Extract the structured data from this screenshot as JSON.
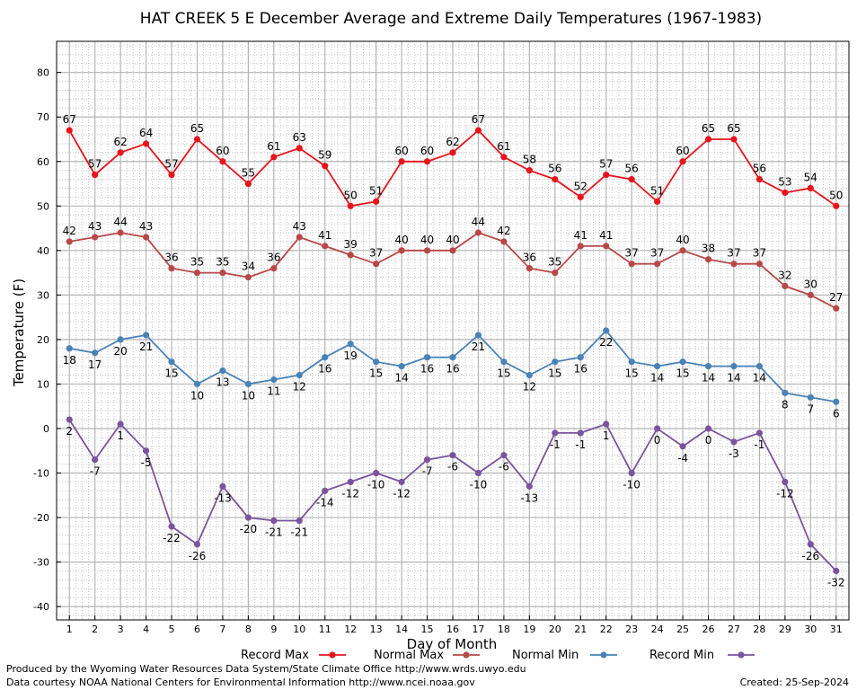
{
  "chart_data": {
    "type": "line",
    "title": "HAT CREEK 5 E December Average and Extreme Daily Temperatures (1967-1983)",
    "xlabel": "Day of Month",
    "ylabel": "Temperature (F)",
    "x": [
      1,
      2,
      3,
      4,
      5,
      6,
      7,
      8,
      9,
      10,
      11,
      12,
      13,
      14,
      15,
      16,
      17,
      18,
      19,
      20,
      21,
      22,
      23,
      24,
      25,
      26,
      27,
      28,
      29,
      30,
      31
    ],
    "xlim": [
      0.5,
      31.5
    ],
    "ylim": [
      -43,
      87
    ],
    "yticks": [
      -40,
      -30,
      -20,
      -10,
      0,
      10,
      20,
      30,
      40,
      50,
      60,
      70,
      80
    ],
    "grid": true,
    "legend_position": "bottom",
    "series": [
      {
        "name": "Record Max",
        "color": "#e8141c",
        "values": [
          67,
          57,
          62,
          64,
          57,
          65,
          60,
          55,
          61,
          63,
          59,
          50,
          51,
          60,
          60,
          62,
          67,
          61,
          58,
          56,
          52,
          57,
          56,
          51,
          60,
          65,
          65,
          56,
          53,
          54,
          50
        ],
        "labels": [
          "67",
          "57",
          "62",
          "64",
          "57",
          "65",
          "60",
          "55",
          "61",
          "63",
          "59",
          "50",
          "51",
          "60",
          "60",
          "62",
          "67",
          "61",
          "58",
          "56",
          "52",
          "57",
          "56",
          "51",
          "60",
          "65",
          "65",
          "56",
          "53",
          "54",
          "50"
        ],
        "label_pos": "above"
      },
      {
        "name": "Normal Max",
        "color": "#b84848",
        "values": [
          42,
          43,
          44,
          43,
          36,
          35,
          35,
          34,
          36,
          43,
          41,
          39,
          37,
          40,
          40,
          40,
          44,
          42,
          36,
          35,
          41,
          41,
          37,
          37,
          40,
          38,
          37,
          37,
          32,
          30,
          27
        ],
        "labels": [
          "42",
          "43",
          "44",
          "43",
          "36",
          "35",
          "35",
          "34",
          "36",
          "43",
          "41",
          "39",
          "37",
          "40",
          "40",
          "40",
          "44",
          "42",
          "36",
          "35",
          "41",
          "41",
          "37",
          "37",
          "40",
          "38",
          "37",
          "37",
          "32",
          "30",
          "27"
        ],
        "label_pos": "above"
      },
      {
        "name": "Normal Min",
        "color": "#4a82b8",
        "values": [
          18,
          17,
          20,
          21,
          15,
          10,
          13,
          10,
          11,
          12,
          16,
          19,
          15,
          14,
          16,
          16,
          21,
          15,
          12,
          15,
          16,
          22,
          15,
          14,
          15,
          14,
          14,
          14,
          8,
          7,
          6
        ],
        "labels": [
          "18",
          "17",
          "20",
          "21",
          "15",
          "10",
          "13",
          "10",
          "11",
          "12",
          "16",
          "19",
          "15",
          "14",
          "16",
          "16",
          "21",
          "15",
          "12",
          "15",
          "16",
          "22",
          "15",
          "14",
          "15",
          "14",
          "14",
          "14",
          "8",
          "7",
          "6"
        ],
        "label_pos": "below"
      },
      {
        "name": "Record Min",
        "color": "#7a549e",
        "values": [
          2,
          -7,
          1,
          -5,
          -22,
          -26,
          -13,
          -20,
          -20.7,
          -20.7,
          -14,
          -12,
          -10,
          -12,
          -7,
          -6,
          -10,
          -6,
          -13,
          -1,
          -1,
          1,
          -10,
          0,
          -4,
          0,
          -3,
          -1,
          -12,
          -26,
          -32
        ],
        "labels": [
          "2",
          "-7",
          "1",
          "-5",
          "-22",
          "-26",
          "-13",
          "-20",
          "-21",
          "-21",
          "-14",
          "-12",
          "-10",
          "-12",
          "-7",
          "-6",
          "-10",
          "-6",
          "-13",
          "-1",
          "-1",
          "1",
          "-10",
          "0",
          "-4",
          "0",
          "-3",
          "-1",
          "-12",
          "-26",
          "-32"
        ],
        "label_pos": "below"
      }
    ]
  },
  "footer": {
    "line1": "Produced by the Wyoming Water Resources Data System/State Climate Office http://www.wrds.uwyo.edu",
    "line2": "Data courtesy NOAA National Centers for Environmental Information http://www.ncei.noaa.gov",
    "created": "Created: 25-Sep-2024"
  }
}
